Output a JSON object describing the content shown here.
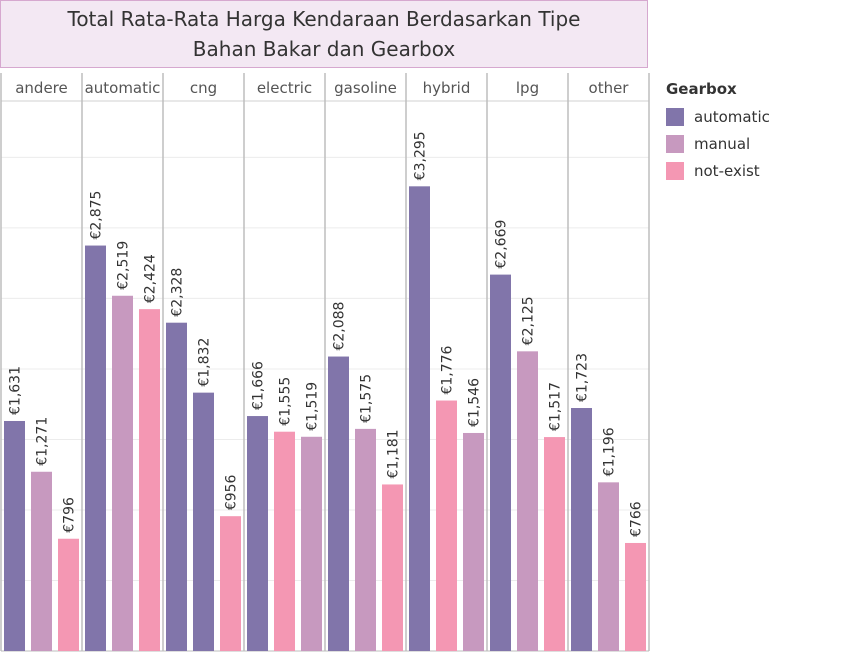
{
  "title": "Total Rata-Rata Harga Kendaraan Berdasarkan Tipe Bahan Bakar dan Gearbox",
  "legend": {
    "title": "Gearbox",
    "items": [
      {
        "label": "automatic",
        "color": "#8175aa"
      },
      {
        "label": "manual",
        "color": "#c799bf"
      },
      {
        "label": "not-exist",
        "color": "#f497b3"
      }
    ]
  },
  "chart_data": {
    "type": "bar",
    "title": "Total Rata-Rata Harga Kendaraan Berdasarkan Tipe Bahan Bakar dan Gearbox",
    "categories": [
      "andere",
      "automatic",
      "cng",
      "electric",
      "gasoline",
      "hybrid",
      "lpg",
      "other"
    ],
    "series_colors": [
      "#8175aa",
      "#c799bf",
      "#f497b3"
    ],
    "ylim": [
      0,
      3900
    ],
    "grid": true,
    "legend_position": "right",
    "panels": [
      {
        "category": "andere",
        "bars": [
          {
            "value": 1631,
            "label": "€1,631",
            "color": "#8175aa"
          },
          {
            "value": 1271,
            "label": "€1,271",
            "color": "#c799bf"
          },
          {
            "value": 796,
            "label": "€796",
            "color": "#f497b3"
          }
        ]
      },
      {
        "category": "automatic",
        "bars": [
          {
            "value": 2875,
            "label": "€2,875",
            "color": "#8175aa"
          },
          {
            "value": 2519,
            "label": "€2,519",
            "color": "#c799bf"
          },
          {
            "value": 2424,
            "label": "€2,424",
            "color": "#f497b3"
          }
        ]
      },
      {
        "category": "cng",
        "bars": [
          {
            "value": 2328,
            "label": "€2,328",
            "color": "#8175aa"
          },
          {
            "value": 1832,
            "label": "€1,832",
            "color": "#8175aa"
          },
          {
            "value": 956,
            "label": "€956",
            "color": "#f497b3"
          }
        ]
      },
      {
        "category": "electric",
        "bars": [
          {
            "value": 1666,
            "label": "€1,666",
            "color": "#8175aa"
          },
          {
            "value": 1555,
            "label": "€1,555",
            "color": "#f497b3"
          },
          {
            "value": 1519,
            "label": "€1,519",
            "color": "#c799bf"
          }
        ]
      },
      {
        "category": "gasoline",
        "bars": [
          {
            "value": 2088,
            "label": "€2,088",
            "color": "#8175aa"
          },
          {
            "value": 1575,
            "label": "€1,575",
            "color": "#c799bf"
          },
          {
            "value": 1181,
            "label": "€1,181",
            "color": "#f497b3"
          }
        ]
      },
      {
        "category": "hybrid",
        "bars": [
          {
            "value": 3295,
            "label": "€3,295",
            "color": "#8175aa"
          },
          {
            "value": 1776,
            "label": "€1,776",
            "color": "#f497b3"
          },
          {
            "value": 1546,
            "label": "€1,546",
            "color": "#c799bf"
          }
        ]
      },
      {
        "category": "lpg",
        "bars": [
          {
            "value": 2669,
            "label": "€2,669",
            "color": "#8175aa"
          },
          {
            "value": 2125,
            "label": "€2,125",
            "color": "#c799bf"
          },
          {
            "value": 1517,
            "label": "€1,517",
            "color": "#f497b3"
          }
        ]
      },
      {
        "category": "other",
        "bars": [
          {
            "value": 1723,
            "label": "€1,723",
            "color": "#8175aa"
          },
          {
            "value": 1196,
            "label": "€1,196",
            "color": "#c799bf"
          },
          {
            "value": 766,
            "label": "€766",
            "color": "#f497b3"
          }
        ]
      }
    ]
  }
}
